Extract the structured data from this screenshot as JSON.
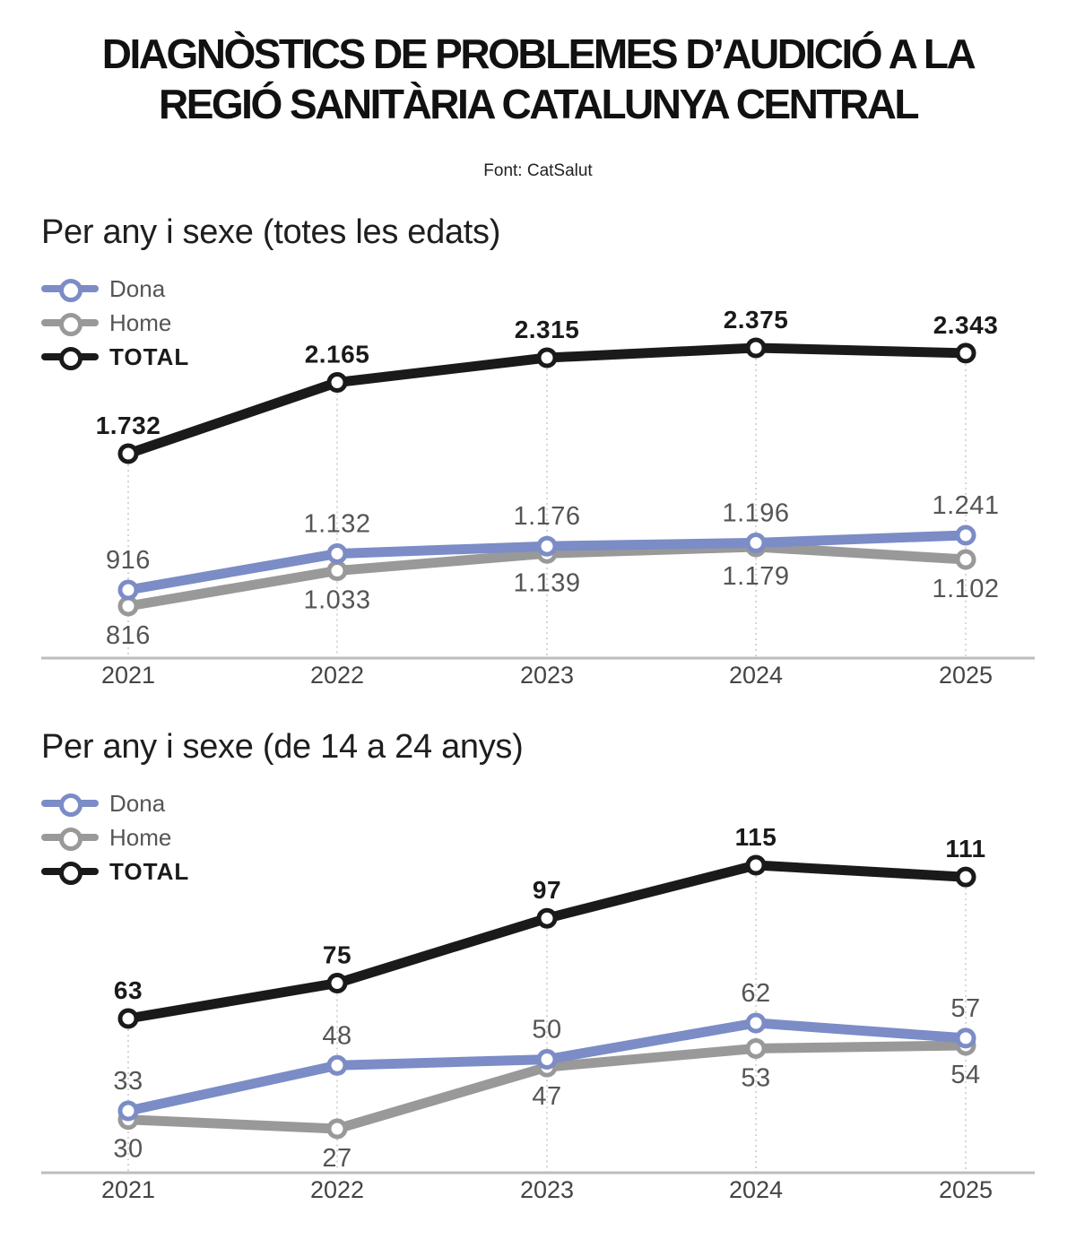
{
  "header": {
    "title_line1": "DIAGNÒSTICS DE PROBLEMES D’AUDICIÓ A LA",
    "title_line2": "REGIÓ SANITÀRIA CATALUNYA CENTRAL",
    "source": "Font: CatSalut"
  },
  "colors": {
    "dona": "#7b8cc6",
    "home": "#999999",
    "total": "#1a1a1a",
    "axis": "#bdbdbd",
    "grid": "#c8c8c8"
  },
  "chart_data": [
    {
      "type": "line",
      "title": "Per any i sexe (totes les edats)",
      "x": [
        "2021",
        "2022",
        "2023",
        "2024",
        "2025"
      ],
      "series": [
        {
          "name": "Dona",
          "values": [
            916,
            1132,
            1176,
            1196,
            1241
          ],
          "labels": [
            "916",
            "1.132",
            "1.176",
            "1.196",
            "1.241"
          ]
        },
        {
          "name": "Home",
          "values": [
            816,
            1033,
            1139,
            1179,
            1102
          ],
          "labels": [
            "816",
            "1.033",
            "1.139",
            "1.179",
            "1.102"
          ]
        },
        {
          "name": "TOTAL",
          "values": [
            1732,
            2165,
            2315,
            2375,
            2343
          ],
          "labels": [
            "1.732",
            "2.165",
            "2.315",
            "2.375",
            "2.343"
          ]
        }
      ],
      "legend_position": "top-left",
      "grid": "vertical dotted"
    },
    {
      "type": "line",
      "title": "Per any i sexe (de 14 a 24 anys)",
      "x": [
        "2021",
        "2022",
        "2023",
        "2024",
        "2025"
      ],
      "series": [
        {
          "name": "Dona",
          "values": [
            33,
            48,
            50,
            62,
            57
          ],
          "labels": [
            "33",
            "48",
            "50",
            "62",
            "57"
          ]
        },
        {
          "name": "Home",
          "values": [
            30,
            27,
            47,
            53,
            54
          ],
          "labels": [
            "30",
            "27",
            "47",
            "53",
            "54"
          ]
        },
        {
          "name": "TOTAL",
          "values": [
            63,
            75,
            97,
            115,
            111
          ],
          "labels": [
            "63",
            "75",
            "97",
            "115",
            "111"
          ]
        }
      ],
      "legend_position": "top-left",
      "grid": "vertical dotted"
    }
  ]
}
